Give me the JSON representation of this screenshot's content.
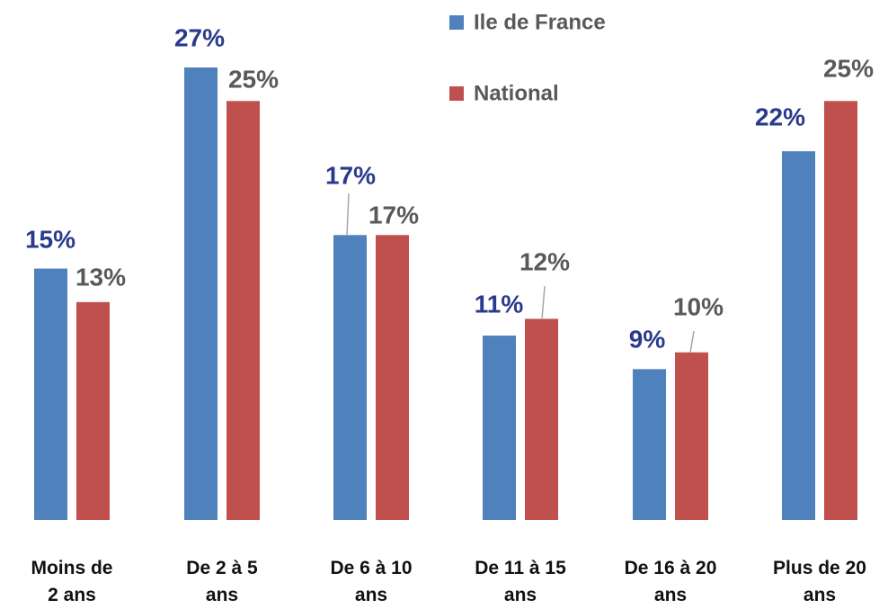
{
  "chart_data": {
    "type": "bar",
    "categories": [
      "Moins de\n2 ans",
      "De 2 à 5\nans",
      "De 6 à 10\nans",
      "De 11 à 15\nans",
      "De 16 à 20\nans",
      "Plus de 20\nans"
    ],
    "series": [
      {
        "name": "Ile de France",
        "color": "#4f81bd",
        "label_color": "#2a3a8c",
        "values": [
          15,
          27,
          17,
          11,
          9,
          22
        ],
        "value_labels": [
          "15%",
          "27%",
          "17%",
          "11%",
          "9%",
          "22%"
        ]
      },
      {
        "name": "National",
        "color": "#c0504d",
        "label_color": "#595959",
        "values": [
          13,
          25,
          17,
          12,
          10,
          25
        ],
        "value_labels": [
          "13%",
          "25%",
          "17%",
          "12%",
          "10%",
          "25%"
        ]
      }
    ]
  }
}
